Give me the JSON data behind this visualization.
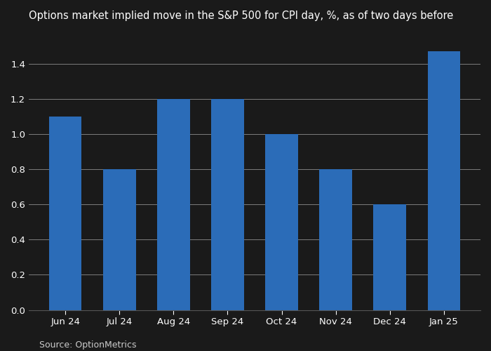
{
  "title": "Options market implied move in the S&P 500 for CPI day, %, as of two days before",
  "categories": [
    "Jun 24",
    "Jul 24",
    "Aug 24",
    "Sep 24",
    "Oct 24",
    "Nov 24",
    "Dec 24",
    "Jan 25"
  ],
  "values": [
    1.1,
    0.8,
    1.2,
    1.2,
    1.0,
    0.8,
    0.6,
    1.47
  ],
  "bar_color": "#2b6cb8",
  "figure_bg": "#1a1a1a",
  "axes_bg": "#1a1a1a",
  "grid_color": "#ffffff",
  "text_color": "#ffffff",
  "source_color": "#cccccc",
  "spine_color": "#555555",
  "ylim": [
    0,
    1.6
  ],
  "yticks": [
    0,
    0.2,
    0.4,
    0.6,
    0.8,
    1.0,
    1.2,
    1.4
  ],
  "source_text": "Source: OptionMetrics",
  "title_fontsize": 10.5,
  "tick_fontsize": 9.5,
  "source_fontsize": 9
}
